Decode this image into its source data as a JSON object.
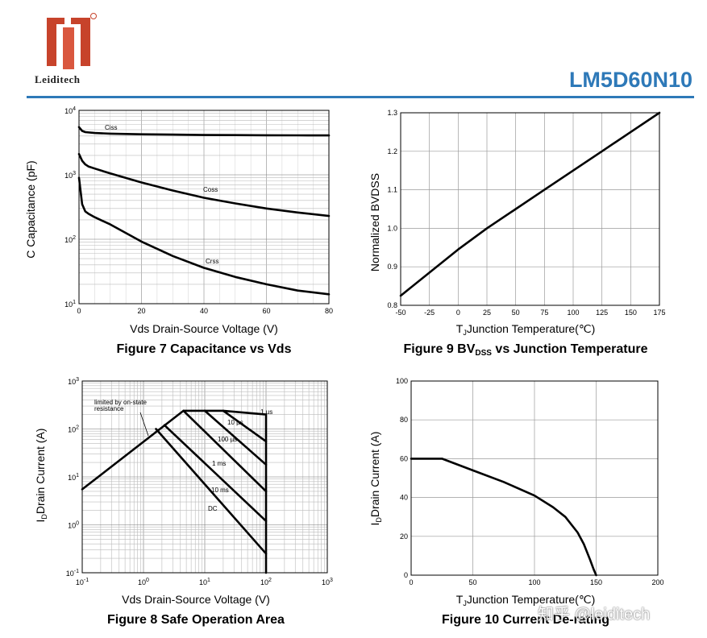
{
  "header": {
    "brand": "Leiditech",
    "part_number": "LM5D60N10",
    "colors": {
      "accent": "#2e79b8",
      "logo": "#c7432b"
    }
  },
  "watermark": "知乎 @leiditech",
  "chart_data": [
    {
      "id": "fig7",
      "type": "line",
      "title": "Figure 7 Capacitance vs Vds",
      "xlabel": "Vds Drain-Source Voltage (V)",
      "ylabel": "C Capacitance (pF)",
      "xlim": [
        0,
        80
      ],
      "ylim": [
        10,
        10000
      ],
      "yscale": "log",
      "x_ticks": [
        "0",
        "20",
        "40",
        "60",
        "80"
      ],
      "y_ticks": [
        {
          "base": "10",
          "exp": "1"
        },
        {
          "base": "10",
          "exp": "2"
        },
        {
          "base": "10",
          "exp": "3"
        },
        {
          "base": "10",
          "exp": "4"
        }
      ],
      "series": [
        {
          "name": "Ciss",
          "x": [
            0,
            1,
            2,
            5,
            10,
            20,
            30,
            40,
            50,
            60,
            70,
            80
          ],
          "y": [
            5500,
            4800,
            4600,
            4450,
            4350,
            4250,
            4200,
            4150,
            4130,
            4110,
            4100,
            4080
          ]
        },
        {
          "name": "Coss",
          "x": [
            0,
            1,
            2,
            3,
            5,
            10,
            20,
            30,
            40,
            50,
            60,
            70,
            80
          ],
          "y": [
            2100,
            1650,
            1450,
            1350,
            1250,
            1050,
            760,
            570,
            440,
            360,
            300,
            260,
            230
          ]
        },
        {
          "name": "Crss",
          "x": [
            0,
            1,
            2,
            3,
            5,
            10,
            20,
            30,
            40,
            50,
            60,
            70,
            80
          ],
          "y": [
            900,
            350,
            270,
            250,
            220,
            170,
            92,
            55,
            36,
            26,
            20,
            16,
            14
          ]
        }
      ],
      "annotations": [
        "Ciss",
        "Coss",
        "Crss"
      ]
    },
    {
      "id": "fig9",
      "type": "line",
      "title": "Figure 9 BV",
      "title_sub": "DSS",
      "title_tail": " vs Junction Temperature",
      "xlabel": "Junction Temperature(℃)",
      "xlabel_prefix": "T",
      "xlabel_sub": "J",
      "ylabel": "Normalized BVDSS",
      "xlim": [
        -50,
        175
      ],
      "ylim": [
        0.8,
        1.3
      ],
      "x_ticks": [
        "-50",
        "-25",
        "0",
        "25",
        "50",
        "75",
        "100",
        "125",
        "150",
        "175"
      ],
      "y_ticks": [
        "0.8",
        "0.9",
        "1.0",
        "1.1",
        "1.2",
        "1.3"
      ],
      "series": [
        {
          "name": "BVDSS",
          "x": [
            -50,
            -25,
            0,
            25,
            50,
            75,
            100,
            125,
            150,
            175
          ],
          "y": [
            0.825,
            0.885,
            0.945,
            1.0,
            1.05,
            1.1,
            1.15,
            1.2,
            1.25,
            1.3
          ]
        }
      ]
    },
    {
      "id": "fig8",
      "type": "line",
      "title": "Figure 8 Safe Operation Area",
      "xlabel": "Vds Drain-Source Voltage (V)",
      "ylabel": "Drain Current (A)",
      "ylabel_prefix": "I",
      "ylabel_sub": "D",
      "xscale": "log",
      "yscale": "log",
      "xlim": [
        0.1,
        1000
      ],
      "ylim": [
        0.1,
        1000
      ],
      "x_ticks": [
        {
          "base": "10",
          "exp": "-1"
        },
        {
          "base": "10",
          "exp": "0"
        },
        {
          "base": "10",
          "exp": "1"
        },
        {
          "base": "10",
          "exp": "2"
        },
        {
          "base": "10",
          "exp": "3"
        }
      ],
      "y_ticks": [
        {
          "base": "10",
          "exp": "-1"
        },
        {
          "base": "10",
          "exp": "0"
        },
        {
          "base": "10",
          "exp": "1"
        },
        {
          "base": "10",
          "exp": "2"
        },
        {
          "base": "10",
          "exp": "3"
        }
      ],
      "series": [
        {
          "name": "1 µs",
          "x": [
            0.1,
            4.5,
            20,
            100,
            100
          ],
          "y": [
            5.5,
            240,
            240,
            200,
            0.1
          ]
        },
        {
          "name": "10 µs",
          "x": [
            20,
            100
          ],
          "y": [
            240,
            55
          ]
        },
        {
          "name": "100 µs",
          "x": [
            10,
            100
          ],
          "y": [
            240,
            18
          ]
        },
        {
          "name": "1 ms",
          "x": [
            4.5,
            100
          ],
          "y": [
            240,
            5
          ]
        },
        {
          "name": "10 ms",
          "x": [
            2.2,
            100
          ],
          "y": [
            120,
            1.2
          ]
        },
        {
          "name": "DC",
          "x": [
            1.6,
            100
          ],
          "y": [
            100,
            0.25
          ]
        }
      ],
      "annotations": [
        "limited by on-state",
        "resistance",
        "1 µs",
        "10 µs",
        "100 µs",
        "1 ms",
        "10 ms",
        "DC"
      ]
    },
    {
      "id": "fig10",
      "type": "line",
      "title": "Figure 10 Current De-rating",
      "xlabel": "Junction Temperature(℃)",
      "xlabel_prefix": "T",
      "xlabel_sub": "J",
      "ylabel": "Drain Current (A)",
      "ylabel_prefix": "I",
      "ylabel_sub": "D",
      "xlim": [
        0,
        200
      ],
      "ylim": [
        0,
        100
      ],
      "x_ticks": [
        "0",
        "50",
        "100",
        "150",
        "200"
      ],
      "y_ticks": [
        "0",
        "20",
        "40",
        "60",
        "80",
        "100"
      ],
      "series": [
        {
          "name": "ID",
          "x": [
            0,
            25,
            50,
            75,
            100,
            115,
            125,
            135,
            140,
            145,
            148,
            150
          ],
          "y": [
            60,
            60,
            54,
            48,
            41,
            35,
            30,
            22,
            16,
            8,
            3,
            0
          ]
        }
      ]
    }
  ]
}
